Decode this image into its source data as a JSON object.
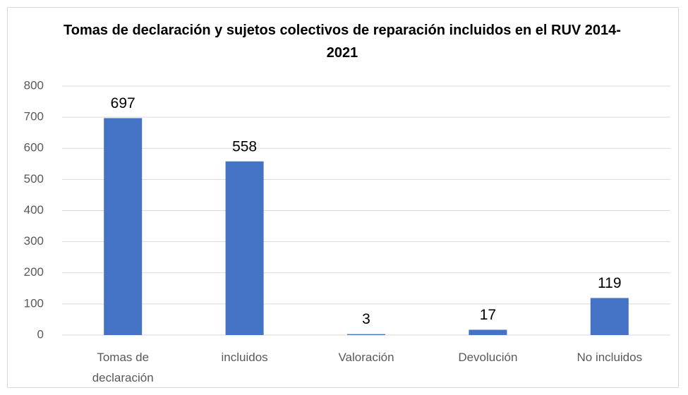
{
  "chart_data": {
    "type": "bar",
    "title": "Tomas de declaración y sujetos colectivos de reparación incluidos en el RUV 2014-2021",
    "categories": [
      "Tomas de declaración",
      "incluidos",
      "Valoración",
      "Devolución",
      "No incluidos"
    ],
    "values": [
      697,
      558,
      3,
      17,
      119
    ],
    "color": "#4472c4",
    "ylim": [
      0,
      800
    ],
    "yticks": [
      0,
      100,
      200,
      300,
      400,
      500,
      600,
      700,
      800
    ],
    "grid": true
  }
}
